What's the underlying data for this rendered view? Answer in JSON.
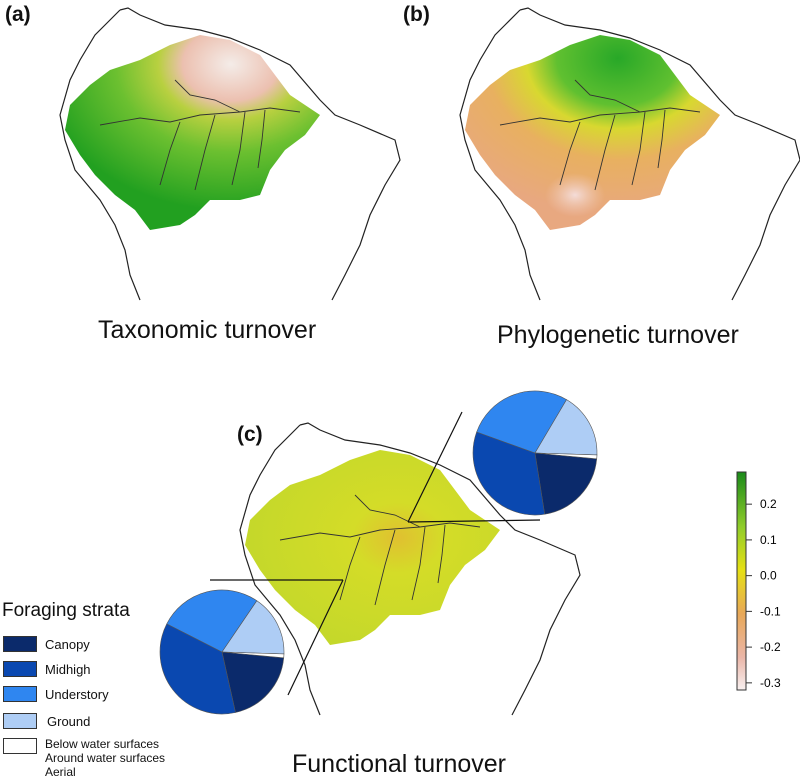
{
  "panels": [
    {
      "label": "(a)",
      "title": "Taxonomic turnover"
    },
    {
      "label": "(b)",
      "title": "Phylogenetic turnover"
    },
    {
      "label": "(c)",
      "title": "Functional turnover"
    }
  ],
  "legend": {
    "title": "Foraging strata",
    "items": [
      {
        "label": "Canopy",
        "color": "#0b2a6b"
      },
      {
        "label": "Midhigh",
        "color": "#0a48b0"
      },
      {
        "label": "Understory",
        "color": "#2f86f0"
      },
      {
        "label": "Ground",
        "color": "#aecdf5"
      },
      {
        "label": "Below water surfaces\nAround water surfaces\nAerial",
        "color": "#ffffff",
        "lines": [
          "Below water surfaces",
          "Around water surfaces",
          "Aerial"
        ]
      }
    ]
  },
  "pies": [
    {
      "name": "north-east",
      "fractions": [
        0.21,
        0.33,
        0.28,
        0.17,
        0.01
      ]
    },
    {
      "name": "south-west",
      "fractions": [
        0.2,
        0.36,
        0.27,
        0.16,
        0.01
      ]
    }
  ],
  "colorbar": {
    "ticks": [
      "0.2",
      "0.1",
      "0.0",
      "-0.1",
      "-0.2",
      "-0.3"
    ],
    "range": [
      -0.32,
      0.29
    ],
    "colors": [
      "#1a8a1a",
      "#8fcc2a",
      "#e6e014",
      "#e8a858",
      "#eab6a8",
      "#f8f0f0"
    ]
  }
}
